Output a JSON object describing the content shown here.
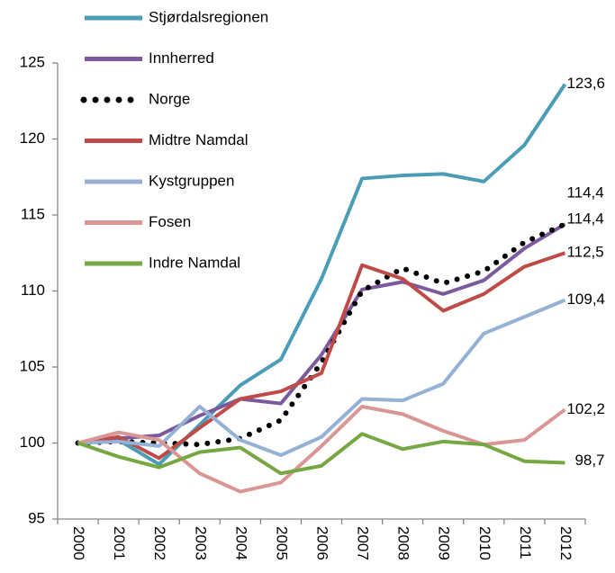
{
  "chart_data": {
    "type": "line",
    "categories": [
      "2000",
      "2001",
      "2002",
      "2003",
      "2004",
      "2005",
      "2006",
      "2007",
      "2008",
      "2009",
      "2010",
      "2011",
      "2012"
    ],
    "ylim": [
      95,
      125
    ],
    "yticks": [
      95,
      100,
      105,
      110,
      115,
      120,
      125
    ],
    "legend": "top-left",
    "series": [
      {
        "name": "Stjørdalsregionen",
        "color": "#4a9db5",
        "style": "solid",
        "values": [
          100,
          100.2,
          98.6,
          101.2,
          103.8,
          105.5,
          110.8,
          117.4,
          117.6,
          117.7,
          117.2,
          119.6,
          123.6
        ],
        "value_labels": [
          null,
          null,
          null,
          null,
          null,
          null,
          null,
          null,
          null,
          null,
          null,
          null,
          "123,6"
        ]
      },
      {
        "name": "Innherred",
        "color": "#7a5a9c",
        "style": "solid",
        "values": [
          100,
          100.3,
          100.5,
          101.8,
          102.9,
          102.6,
          105.8,
          110.1,
          110.6,
          109.8,
          110.7,
          112.8,
          114.4
        ],
        "value_labels": [
          null,
          null,
          null,
          null,
          null,
          null,
          null,
          null,
          null,
          null,
          null,
          null,
          "114,4"
        ]
      },
      {
        "name": "Norge",
        "color": "#000000",
        "style": "dotted",
        "values": [
          100,
          100.1,
          100.0,
          99.9,
          100.3,
          101.5,
          105.3,
          110.0,
          111.5,
          110.5,
          111.3,
          113.2,
          114.4
        ],
        "value_labels": [
          null,
          null,
          null,
          null,
          null,
          null,
          null,
          null,
          null,
          null,
          null,
          null,
          "114,4"
        ]
      },
      {
        "name": "Midtre Namdal",
        "color": "#be4b48",
        "style": "solid",
        "values": [
          100,
          100.4,
          99.0,
          101.0,
          102.9,
          103.4,
          104.6,
          111.7,
          110.8,
          108.7,
          109.8,
          111.6,
          112.5
        ],
        "value_labels": [
          null,
          null,
          null,
          null,
          null,
          null,
          null,
          null,
          null,
          null,
          null,
          null,
          "112,5"
        ]
      },
      {
        "name": "Kystgruppen",
        "color": "#95b1d6",
        "style": "solid",
        "values": [
          100,
          100.1,
          99.8,
          102.4,
          100.2,
          99.2,
          100.4,
          102.9,
          102.8,
          103.9,
          107.2,
          108.3,
          109.4
        ],
        "value_labels": [
          null,
          null,
          null,
          null,
          null,
          null,
          null,
          null,
          null,
          null,
          null,
          null,
          "109,4"
        ]
      },
      {
        "name": "Fosen",
        "color": "#d99694",
        "style": "solid",
        "values": [
          100,
          100.7,
          100.2,
          98.0,
          96.8,
          97.4,
          99.8,
          102.4,
          101.9,
          100.8,
          99.9,
          100.2,
          102.2
        ],
        "value_labels": [
          null,
          null,
          null,
          null,
          null,
          null,
          null,
          null,
          null,
          null,
          null,
          null,
          "102,2"
        ]
      },
      {
        "name": "Indre Namdal",
        "color": "#77a743",
        "style": "solid",
        "values": [
          100,
          99.1,
          98.4,
          99.4,
          99.7,
          98.0,
          98.5,
          100.6,
          99.6,
          100.1,
          99.9,
          98.8,
          98.7
        ],
        "value_labels": [
          null,
          null,
          null,
          null,
          null,
          null,
          null,
          null,
          null,
          null,
          null,
          null,
          "98,7"
        ]
      }
    ]
  }
}
